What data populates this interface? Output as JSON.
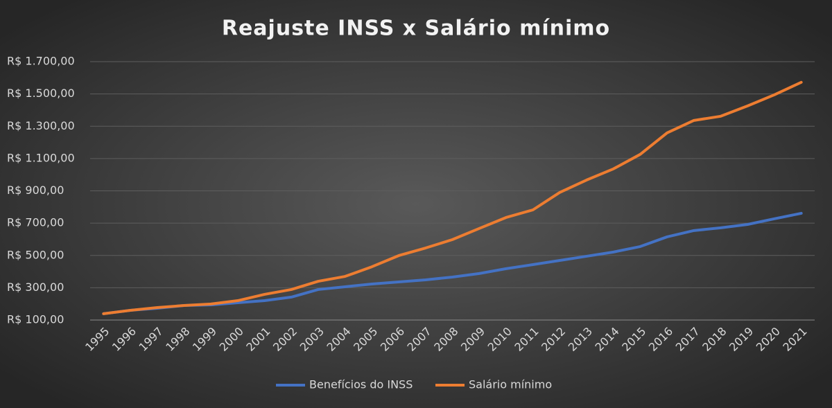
{
  "chart_data": {
    "type": "line",
    "title": "Reajuste INSS x Salário mínimo",
    "categories": [
      "1995",
      "1996",
      "1997",
      "1998",
      "1999",
      "2000",
      "2001",
      "2002",
      "2003",
      "2004",
      "2005",
      "2006",
      "2007",
      "2008",
      "2009",
      "2010",
      "2011",
      "2012",
      "2013",
      "2014",
      "2015",
      "2016",
      "2017",
      "2018",
      "2019",
      "2020",
      "2021"
    ],
    "series": [
      {
        "name": "Benefícios do INSS",
        "color": "#4472c4",
        "values": [
          139,
          160,
          173,
          190,
          194,
          207,
          220,
          242,
          289,
          306,
          323,
          336,
          349,
          366,
          388,
          418,
          443,
          469,
          495,
          521,
          555,
          615,
          654,
          671,
          692,
          727,
          761
        ]
      },
      {
        "name": "Salário mínimo",
        "color": "#ed7d31",
        "values": [
          139,
          160,
          177,
          190,
          199,
          220,
          259,
          289,
          340,
          370,
          430,
          499,
          546,
          598,
          667,
          735,
          782,
          890,
          967,
          1036,
          1126,
          1259,
          1336,
          1362,
          1426,
          1495,
          1572
        ]
      }
    ],
    "ylim": [
      100,
      1700
    ],
    "yticks": [
      {
        "value": 100,
        "label": "R$ 100,00"
      },
      {
        "value": 300,
        "label": "R$ 300,00"
      },
      {
        "value": 500,
        "label": "R$ 500,00"
      },
      {
        "value": 700,
        "label": "R$ 700,00"
      },
      {
        "value": 900,
        "label": "R$ 900,00"
      },
      {
        "value": 1100,
        "label": "R$ 1.100,00"
      },
      {
        "value": 1300,
        "label": "R$ 1.300,00"
      },
      {
        "value": 1500,
        "label": "R$ 1.500,00"
      },
      {
        "value": 1700,
        "label": "R$ 1.700,00"
      }
    ],
    "grid": true,
    "legend": "bottom"
  }
}
